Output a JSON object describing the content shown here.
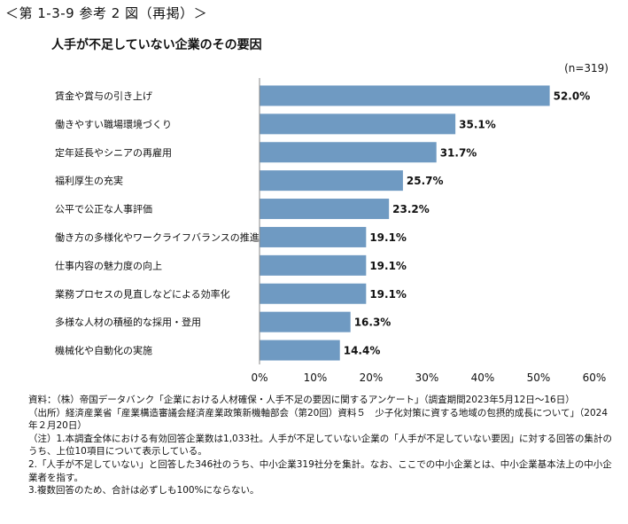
{
  "figure_label": "＜第 1-3-9 参考 2 図（再掲）＞",
  "chart_data": {
    "type": "bar",
    "orientation": "horizontal",
    "title": "人手が不足していない企業のその要因",
    "note_n": "(n=319)",
    "categories": [
      "賃金や賞与の引き上げ",
      "働きやすい職場環境づくり",
      "定年延長やシニアの再雇用",
      "福利厚生の充実",
      "公平で公正な人事評価",
      "働き方の多様化やワークライフバランスの推進",
      "仕事内容の魅力度の向上",
      "業務プロセスの見直しなどによる効率化",
      "多様な人材の積極的な採用・登用",
      "機械化や自動化の実施"
    ],
    "values": [
      52.0,
      35.1,
      31.7,
      25.7,
      23.2,
      19.1,
      19.1,
      19.1,
      16.3,
      14.4
    ],
    "value_labels": [
      "52.0%",
      "35.1%",
      "31.7%",
      "25.7%",
      "23.2%",
      "19.1%",
      "19.1%",
      "19.1%",
      "16.3%",
      "14.4%"
    ],
    "xlim": [
      0,
      60
    ],
    "x_ticks": [
      "0%",
      "10%",
      "20%",
      "30%",
      "40%",
      "50%",
      "60%"
    ],
    "bar_color": "#6f9ac2",
    "grid": false
  },
  "notes": [
    "資料：（株）帝国データバンク「企業における人材確保・人手不足の要因に関するアンケート」（調査期間2023年5月12日～16日）",
    "（出所）経済産業省「産業構造審議会経済産業政策新機軸部会（第20回）資料５　少子化対策に資する地域の包摂的成長について」（2024年２月20日）",
    "（注）1.本調査全体における有効回答企業数は1,033社。人手が不足していない企業の「人手が不足していない要因」に対する回答の集計のうち、上位10項目について表示している。",
    "2.「人手が不足していない」と回答した346社のうち、中小企業319社分を集計。なお、ここでの中小企業とは、中小企業基本法上の中小企業者を指す。",
    "3.複数回答のため、合計は必ずしも100%にならない。"
  ]
}
